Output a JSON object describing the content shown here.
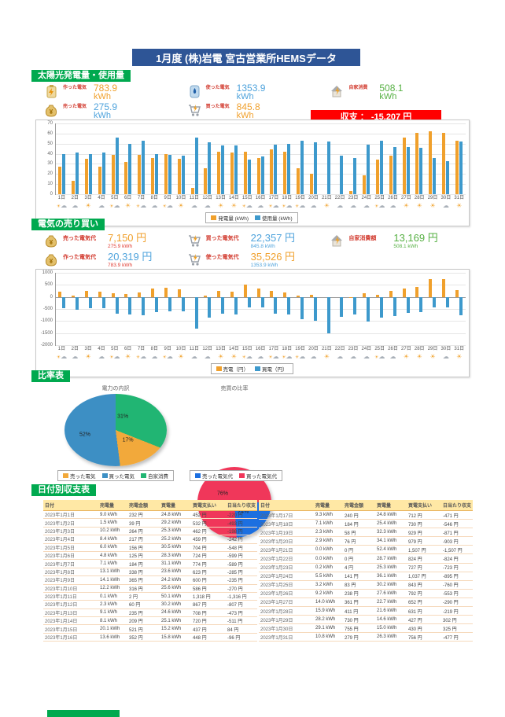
{
  "title": "1月度 (株)岩電 宮古営業所HEMSデータ",
  "colors": {
    "header_green": "#00A94F",
    "title_blue": "#2E5596",
    "balance_red": "#FF0000",
    "bar_orange": "#F0A02C",
    "bar_blue": "#3D99CC",
    "pie_orange": "#F2A93B",
    "pie_steelblue": "#3D8FC4",
    "pie_green": "#21B573",
    "pie_red": "#F0375A",
    "pie_blue": "#1C6FE0"
  },
  "solar": {
    "header": "太陽光発電量・使用量",
    "kpis": [
      {
        "icon": "battery-icon",
        "label": "作った電気",
        "value": "783.9",
        "unit": "kWh",
        "color": "orange"
      },
      {
        "icon": "boiler-icon",
        "label": "使った電気",
        "value": "1353.9",
        "unit": "kWh",
        "color": "blue"
      },
      {
        "icon": "house-icon",
        "label": "自家消費",
        "value": "508.1",
        "unit": "kWh",
        "color": "green"
      },
      {
        "icon": "moneybag-icon",
        "label": "売った電気",
        "value": "275.9",
        "unit": "kWh",
        "color": "blue",
        "sub": "7,150 円"
      },
      {
        "icon": "cart-icon",
        "label": "買った電気",
        "value": "845.8",
        "unit": "kWh",
        "color": "orange",
        "sub": "22,357 円"
      }
    ],
    "balance": "収支 ： -15,207 円"
  },
  "trade": {
    "header": "電気の売り買い",
    "kpis": [
      {
        "icon": "moneybag-icon",
        "label": "売った電気代",
        "value": "7,150 円",
        "color": "orange",
        "sub": "275.9 kWh",
        "sub_color": "red"
      },
      {
        "icon": "cart-icon",
        "label": "買った電気代",
        "value": "22,357 円",
        "color": "blue",
        "sub": "845.8 kWh",
        "sub_color": "blue"
      },
      {
        "icon": "house-icon",
        "label": "自家消費額",
        "value": "13,169 円",
        "color": "green",
        "sub": "508.1 kWh",
        "sub_color": "green"
      },
      {
        "icon": "moneybag-icon",
        "label": "作った電気代",
        "value": "20,319 円",
        "color": "blue",
        "sub": "783.9 kWh",
        "sub_color": "red"
      },
      {
        "icon": "cart-icon",
        "label": "使った電気代",
        "value": "35,526 円",
        "color": "orange",
        "sub": "1353.9 kWh",
        "sub_color": "blue"
      }
    ]
  },
  "ratio": {
    "header": "比率表"
  },
  "daily": {
    "header": "日付別収支表",
    "columns": [
      "日付",
      "売電量",
      "売電金額",
      "買電量",
      "買電支払い",
      "日当たり収支"
    ],
    "rows_left": [
      [
        "2023年1月1日",
        "9.0 kWh",
        "232 円",
        "24.8 kWh",
        "452 円",
        "-220 円"
      ],
      [
        "2023年1月2日",
        "1.5 kWh",
        "39 円",
        "29.2 kWh",
        "532 円",
        "-493 円"
      ],
      [
        "2023年1月3日",
        "10.2 kWh",
        "264 円",
        "25.3 kWh",
        "462 円",
        "-198 円"
      ],
      [
        "2023年1月4日",
        "8.4 kWh",
        "217 円",
        "25.2 kWh",
        "459 円",
        "-242 円"
      ],
      [
        "2023年1月5日",
        "6.0 kWh",
        "156 円",
        "30.5 kWh",
        "704 円",
        "-548 円"
      ],
      [
        "2023年1月6日",
        "4.8 kWh",
        "125 円",
        "28.3 kWh",
        "724 円",
        "-599 円"
      ],
      [
        "2023年1月7日",
        "7.1 kWh",
        "184 円",
        "31.1 kWh",
        "774 円",
        "-589 円"
      ],
      [
        "2023年1月8日",
        "13.1 kWh",
        "338 円",
        "23.6 kWh",
        "623 円",
        "-285 円"
      ],
      [
        "2023年1月9日",
        "14.1 kWh",
        "365 円",
        "24.2 kWh",
        "600 円",
        "-235 円"
      ],
      [
        "2023年1月10日",
        "12.2 kWh",
        "316 円",
        "25.6 kWh",
        "586 円",
        "-270 円"
      ],
      [
        "2023年1月11日",
        "0.1 kWh",
        "2 円",
        "50.1 kWh",
        "1,318 円",
        "-1,316 円"
      ],
      [
        "2023年1月12日",
        "2.3 kWh",
        "60 円",
        "30.2 kWh",
        "867 円",
        "-807 円"
      ],
      [
        "2023年1月13日",
        "9.1 kWh",
        "235 円",
        "24.6 kWh",
        "708 円",
        "-473 円"
      ],
      [
        "2023年1月14日",
        "8.1 kWh",
        "209 円",
        "25.1 kWh",
        "720 円",
        "-511 円"
      ],
      [
        "2023年1月15日",
        "20.1 kWh",
        "521 円",
        "15.2 kWh",
        "437 円",
        "84 円"
      ],
      [
        "2023年1月16日",
        "13.6 kWh",
        "352 円",
        "15.8 kWh",
        "448 円",
        "-96 円"
      ]
    ],
    "rows_right": [
      [
        "2023年1月17日",
        "9.3 kWh",
        "240 円",
        "24.8 kWh",
        "712 円",
        "-471 円"
      ],
      [
        "2023年1月18日",
        "7.1 kWh",
        "184 円",
        "25.4 kWh",
        "730 円",
        "-546 円"
      ],
      [
        "2023年1月19日",
        "2.3 kWh",
        "58 円",
        "32.3 kWh",
        "929 円",
        "-871 円"
      ],
      [
        "2023年1月20日",
        "2.9 kWh",
        "76 円",
        "34.1 kWh",
        "979 円",
        "-903 円"
      ],
      [
        "2023年1月21日",
        "0.0 kWh",
        "0 円",
        "52.4 kWh",
        "1,507 円",
        "-1,507 円"
      ],
      [
        "2023年1月22日",
        "0.0 kWh",
        "0 円",
        "28.7 kWh",
        "824 円",
        "-824 円"
      ],
      [
        "2023年1月23日",
        "0.2 kWh",
        "4 円",
        "25.3 kWh",
        "727 円",
        "-723 円"
      ],
      [
        "2023年1月24日",
        "5.5 kWh",
        "141 円",
        "36.1 kWh",
        "1,037 円",
        "-895 円"
      ],
      [
        "2023年1月25日",
        "3.2 kWh",
        "83 円",
        "30.2 kWh",
        "843 円",
        "-760 円"
      ],
      [
        "2023年1月26日",
        "9.2 kWh",
        "238 円",
        "27.6 kWh",
        "792 円",
        "-553 円"
      ],
      [
        "2023年1月27日",
        "14.0 kWh",
        "361 円",
        "22.7 kWh",
        "652 円",
        "-290 円"
      ],
      [
        "2023年1月28日",
        "15.9 kWh",
        "411 円",
        "21.6 kWh",
        "631 円",
        "-219 円"
      ],
      [
        "2023年1月29日",
        "28.2 kWh",
        "730 円",
        "14.6 kWh",
        "427 円",
        "302 円"
      ],
      [
        "2023年1月30日",
        "29.1 kWh",
        "755 円",
        "15.0 kWh",
        "430 円",
        "325 円"
      ],
      [
        "2023年1月31日",
        "10.8 kWh",
        "279 円",
        "26.3 kWh",
        "756 円",
        "-477 円"
      ]
    ]
  },
  "weather": [
    "partly",
    "cloud",
    "sun",
    "cloud",
    "partly",
    "sun",
    "partly",
    "cloud",
    "partly",
    "sun",
    "cloud",
    "cloud",
    "sun",
    "sun",
    "partly",
    "cloud",
    "partly",
    "partly",
    "partly",
    "cloud",
    "sun",
    "cloud",
    "cloud",
    "cloud",
    "partly",
    "cloud",
    "sun",
    "sun",
    "sun",
    "cloud",
    "sun"
  ],
  "chart_data": [
    {
      "type": "bar",
      "title": "太陽光発電量・使用量（日別）",
      "categories": [
        "1日",
        "2日",
        "3日",
        "4日",
        "5日",
        "6日",
        "7日",
        "8日",
        "9日",
        "10日",
        "11日",
        "12日",
        "13日",
        "14日",
        "15日",
        "16日",
        "17日",
        "18日",
        "19日",
        "20日",
        "21日",
        "22日",
        "23日",
        "24日",
        "25日",
        "26日",
        "27日",
        "28日",
        "29日",
        "30日",
        "31日"
      ],
      "series": [
        {
          "name": "発電量 (kWh)",
          "color": "#F0A02C",
          "values": [
            27,
            13,
            35,
            27,
            39,
            32,
            39,
            36,
            40,
            35,
            6,
            26,
            42,
            41,
            42,
            36,
            44,
            42,
            26,
            20,
            0,
            0,
            3,
            19,
            34,
            38,
            56,
            61,
            62,
            61,
            53
          ]
        },
        {
          "name": "使用量 (kWh)",
          "color": "#3D99CC",
          "values": [
            40,
            41,
            40,
            41,
            56,
            50,
            53,
            40,
            39,
            38,
            56,
            51,
            48,
            48,
            34,
            37,
            49,
            50,
            53,
            51,
            52,
            38,
            36,
            49,
            53,
            47,
            47,
            46,
            36,
            33,
            52
          ]
        }
      ],
      "ylim": [
        0,
        70
      ],
      "yticks": [
        0,
        10,
        20,
        30,
        40,
        50,
        60,
        70
      ],
      "legend_position": "bottom",
      "grid": true
    },
    {
      "type": "bar",
      "title": "電気の売り買い（日別・円）",
      "categories": [
        "1日",
        "2日",
        "3日",
        "4日",
        "5日",
        "6日",
        "7日",
        "8日",
        "9日",
        "10日",
        "11日",
        "12日",
        "13日",
        "14日",
        "15日",
        "16日",
        "17日",
        "18日",
        "19日",
        "20日",
        "21日",
        "22日",
        "23日",
        "24日",
        "25日",
        "26日",
        "27日",
        "28日",
        "29日",
        "30日",
        "31日"
      ],
      "series": [
        {
          "name": "売電（円）",
          "color": "#F0A02C",
          "values": [
            232,
            39,
            264,
            217,
            156,
            125,
            184,
            338,
            365,
            316,
            2,
            60,
            235,
            209,
            521,
            352,
            240,
            184,
            58,
            76,
            0,
            0,
            4,
            141,
            83,
            238,
            361,
            411,
            730,
            755,
            279
          ]
        },
        {
          "name": "買電（円）",
          "color": "#3D99CC",
          "values": [
            -452,
            -532,
            -462,
            -459,
            -704,
            -724,
            -774,
            -623,
            -600,
            -586,
            -1318,
            -867,
            -708,
            -720,
            -437,
            -448,
            -712,
            -730,
            -929,
            -979,
            -1507,
            -824,
            -727,
            -1037,
            -843,
            -792,
            -652,
            -631,
            -427,
            -430,
            -756
          ]
        }
      ],
      "ylim": [
        -2000,
        1000
      ],
      "yticks": [
        -2000,
        -1500,
        -1000,
        -500,
        0,
        500,
        1000
      ],
      "legend_position": "bottom",
      "grid": true
    },
    {
      "type": "pie",
      "title": "電力の内訳",
      "labels": [
        "売った電気",
        "買った電気",
        "自家消費"
      ],
      "values": [
        17,
        52,
        31
      ],
      "colors": [
        "#F2A93B",
        "#3D8FC4",
        "#21B573"
      ],
      "legend_position": "bottom"
    },
    {
      "type": "pie",
      "title": "売買の比率",
      "labels": [
        "売った電気代",
        "買った電気代"
      ],
      "values": [
        24,
        76
      ],
      "colors": [
        "#1C6FE0",
        "#F0375A"
      ],
      "legend_position": "bottom"
    }
  ]
}
